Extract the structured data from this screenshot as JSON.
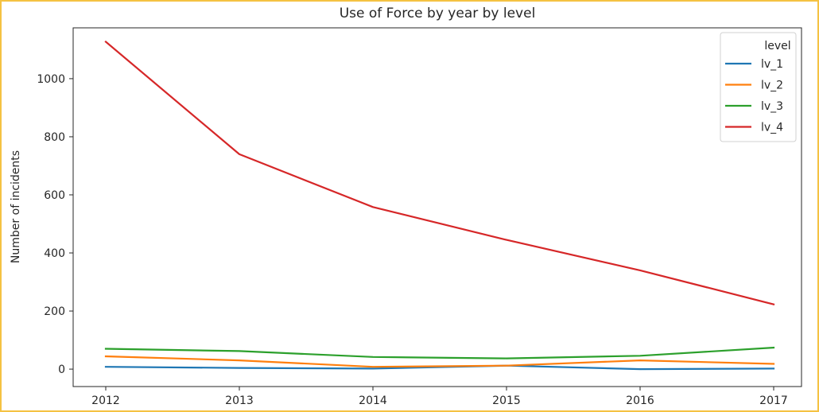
{
  "chart_data": {
    "type": "line",
    "title": "Use of Force by year by level",
    "xlabel": "",
    "ylabel": "Number of incidents",
    "x": [
      "2012",
      "2013",
      "2014",
      "2015",
      "2016",
      "2017"
    ],
    "ylim": [
      -60,
      1175
    ],
    "yticks": [
      0,
      200,
      400,
      600,
      800,
      1000
    ],
    "legend": {
      "title": "level",
      "placement": "top-right"
    },
    "grid": false,
    "series": [
      {
        "name": "lv_1",
        "color": "#1f77b4",
        "values": [
          8,
          4,
          2,
          12,
          0,
          2
        ]
      },
      {
        "name": "lv_2",
        "color": "#ff7f0e",
        "values": [
          44,
          30,
          8,
          12,
          30,
          18
        ]
      },
      {
        "name": "lv_3",
        "color": "#2ca02c",
        "values": [
          70,
          62,
          42,
          37,
          46,
          74
        ]
      },
      {
        "name": "lv_4",
        "color": "#d62728",
        "values": [
          1127,
          740,
          558,
          445,
          340,
          223
        ]
      }
    ]
  }
}
